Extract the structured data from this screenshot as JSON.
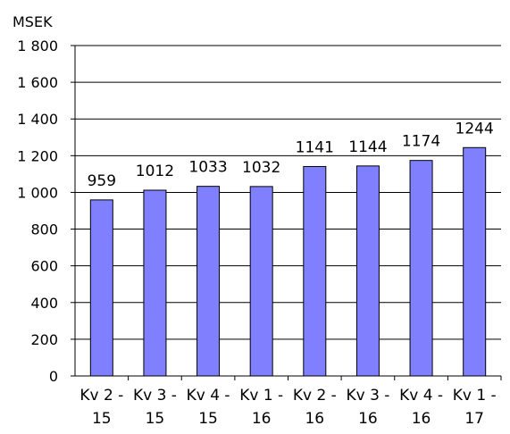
{
  "chart_data": {
    "type": "bar",
    "unit_label": "MSEK",
    "categories": [
      [
        "Kv 2 -",
        "15"
      ],
      [
        "Kv 3 -",
        "15"
      ],
      [
        "Kv 4 -",
        "15"
      ],
      [
        "Kv 1 -",
        "16"
      ],
      [
        "Kv 2 -",
        "16"
      ],
      [
        "Kv 3 -",
        "16"
      ],
      [
        "Kv 4 -",
        "16"
      ],
      [
        "Kv 1 -",
        "17"
      ]
    ],
    "values": [
      959,
      1012,
      1033,
      1032,
      1141,
      1144,
      1174,
      1244
    ],
    "data_labels": [
      "959",
      "1012",
      "1033",
      "1032",
      "1141",
      "1144",
      "1174",
      "1244"
    ],
    "y_ticks": [
      0,
      200,
      400,
      600,
      800,
      1000,
      1200,
      1400,
      1600,
      1800
    ],
    "y_tick_labels": [
      "0",
      "200",
      "400",
      "600",
      "800",
      "1 000",
      "1 200",
      "1 400",
      "1 600",
      "1 800"
    ],
    "ylim": [
      0,
      1800
    ],
    "grid": true,
    "legend": false,
    "colors": {
      "bar_fill": "#8080FF",
      "bar_stroke": "#000000",
      "grid": "#000000",
      "axis": "#000000",
      "text": "#000000",
      "background": "#FFFFFF"
    }
  }
}
